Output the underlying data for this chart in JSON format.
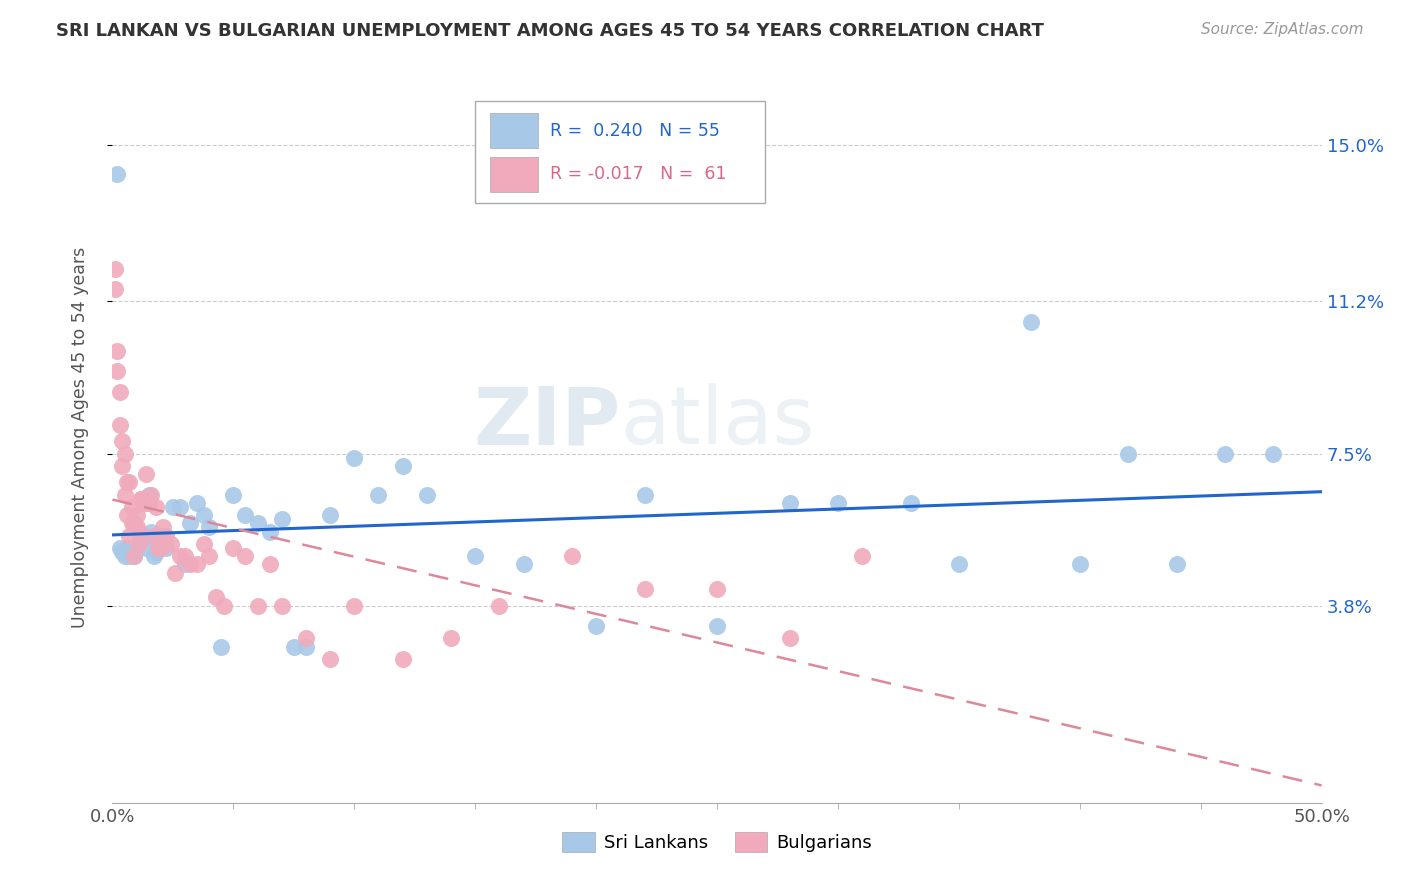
{
  "title": "SRI LANKAN VS BULGARIAN UNEMPLOYMENT AMONG AGES 45 TO 54 YEARS CORRELATION CHART",
  "source": "Source: ZipAtlas.com",
  "ylabel": "Unemployment Among Ages 45 to 54 years",
  "ytick_labels": [
    "15.0%",
    "11.2%",
    "7.5%",
    "3.8%"
  ],
  "ytick_values": [
    0.15,
    0.112,
    0.075,
    0.038
  ],
  "xmin": 0.0,
  "xmax": 0.5,
  "ymin": -0.01,
  "ymax": 0.168,
  "sri_lankan_color": "#a8c8e8",
  "bulgarian_color": "#f0aabb",
  "sri_lankan_R": 0.24,
  "sri_lankan_N": 55,
  "bulgarian_R": -0.017,
  "bulgarian_N": 61,
  "sri_lankan_line_color": "#2266cc",
  "bulgarian_line_color": "#dd8899",
  "watermark_zip": "ZIP",
  "watermark_atlas": "atlas",
  "sri_lankans_x": [
    0.002,
    0.003,
    0.004,
    0.005,
    0.006,
    0.007,
    0.008,
    0.009,
    0.01,
    0.011,
    0.012,
    0.013,
    0.014,
    0.015,
    0.016,
    0.017,
    0.018,
    0.019,
    0.02,
    0.022,
    0.025,
    0.028,
    0.03,
    0.032,
    0.035,
    0.038,
    0.04,
    0.045,
    0.05,
    0.055,
    0.06,
    0.065,
    0.07,
    0.075,
    0.08,
    0.09,
    0.1,
    0.11,
    0.12,
    0.13,
    0.15,
    0.17,
    0.2,
    0.22,
    0.25,
    0.28,
    0.3,
    0.33,
    0.35,
    0.38,
    0.4,
    0.42,
    0.44,
    0.46,
    0.48
  ],
  "sri_lankans_y": [
    0.143,
    0.052,
    0.051,
    0.05,
    0.052,
    0.05,
    0.051,
    0.05,
    0.052,
    0.053,
    0.054,
    0.055,
    0.052,
    0.065,
    0.056,
    0.05,
    0.051,
    0.053,
    0.055,
    0.052,
    0.062,
    0.062,
    0.048,
    0.058,
    0.063,
    0.06,
    0.057,
    0.028,
    0.065,
    0.06,
    0.058,
    0.056,
    0.059,
    0.028,
    0.028,
    0.06,
    0.074,
    0.065,
    0.072,
    0.065,
    0.05,
    0.048,
    0.033,
    0.065,
    0.033,
    0.063,
    0.063,
    0.063,
    0.048,
    0.107,
    0.048,
    0.075,
    0.048,
    0.075,
    0.075
  ],
  "bulgarians_x": [
    0.001,
    0.001,
    0.002,
    0.002,
    0.003,
    0.003,
    0.004,
    0.004,
    0.005,
    0.005,
    0.006,
    0.006,
    0.007,
    0.007,
    0.008,
    0.008,
    0.009,
    0.009,
    0.01,
    0.01,
    0.011,
    0.011,
    0.012,
    0.012,
    0.013,
    0.014,
    0.015,
    0.015,
    0.016,
    0.017,
    0.018,
    0.019,
    0.02,
    0.021,
    0.022,
    0.024,
    0.026,
    0.028,
    0.03,
    0.032,
    0.035,
    0.038,
    0.04,
    0.043,
    0.046,
    0.05,
    0.055,
    0.06,
    0.065,
    0.07,
    0.08,
    0.09,
    0.1,
    0.12,
    0.14,
    0.16,
    0.19,
    0.22,
    0.25,
    0.28,
    0.31
  ],
  "bulgarians_y": [
    0.12,
    0.115,
    0.095,
    0.1,
    0.082,
    0.09,
    0.072,
    0.078,
    0.065,
    0.075,
    0.06,
    0.068,
    0.068,
    0.055,
    0.058,
    0.062,
    0.05,
    0.058,
    0.057,
    0.06,
    0.053,
    0.056,
    0.064,
    0.064,
    0.063,
    0.07,
    0.063,
    0.063,
    0.065,
    0.055,
    0.062,
    0.052,
    0.052,
    0.057,
    0.055,
    0.053,
    0.046,
    0.05,
    0.05,
    0.048,
    0.048,
    0.053,
    0.05,
    0.04,
    0.038,
    0.052,
    0.05,
    0.038,
    0.048,
    0.038,
    0.03,
    0.025,
    0.038,
    0.025,
    0.03,
    0.038,
    0.05,
    0.042,
    0.042,
    0.03,
    0.05
  ]
}
